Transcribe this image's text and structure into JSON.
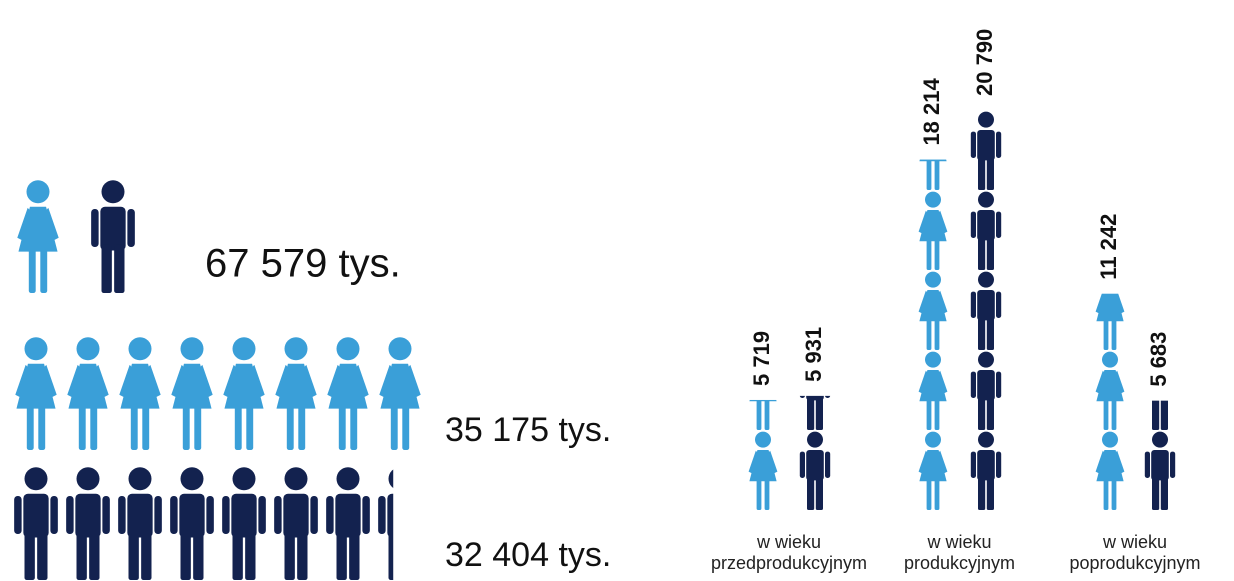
{
  "chart_data": [
    {
      "type": "pictogram-row",
      "total": 67579,
      "total_label": "67 579 tys.",
      "values": [
        35175,
        32404
      ],
      "value_labels": [
        "35 175 tys.",
        "32 404 tys."
      ],
      "colors": [
        "#3a9fd8",
        "#13224f"
      ]
    },
    {
      "type": "pictogram-column",
      "categories": [
        "w wieku\nprzedprodukcyjnym",
        "w wieku\nprodukcyjnym",
        "w wieku\npoprodukcyjnym"
      ],
      "series": [
        {
          "color": "#3a9fd8",
          "values": [
            5719,
            18214,
            11242
          ],
          "value_labels": [
            "5 719",
            "18 214",
            "11 242"
          ]
        },
        {
          "color": "#13224f",
          "values": [
            5931,
            20790,
            5683
          ],
          "value_labels": [
            "5 931",
            "20 790",
            "5 683"
          ]
        }
      ]
    }
  ]
}
